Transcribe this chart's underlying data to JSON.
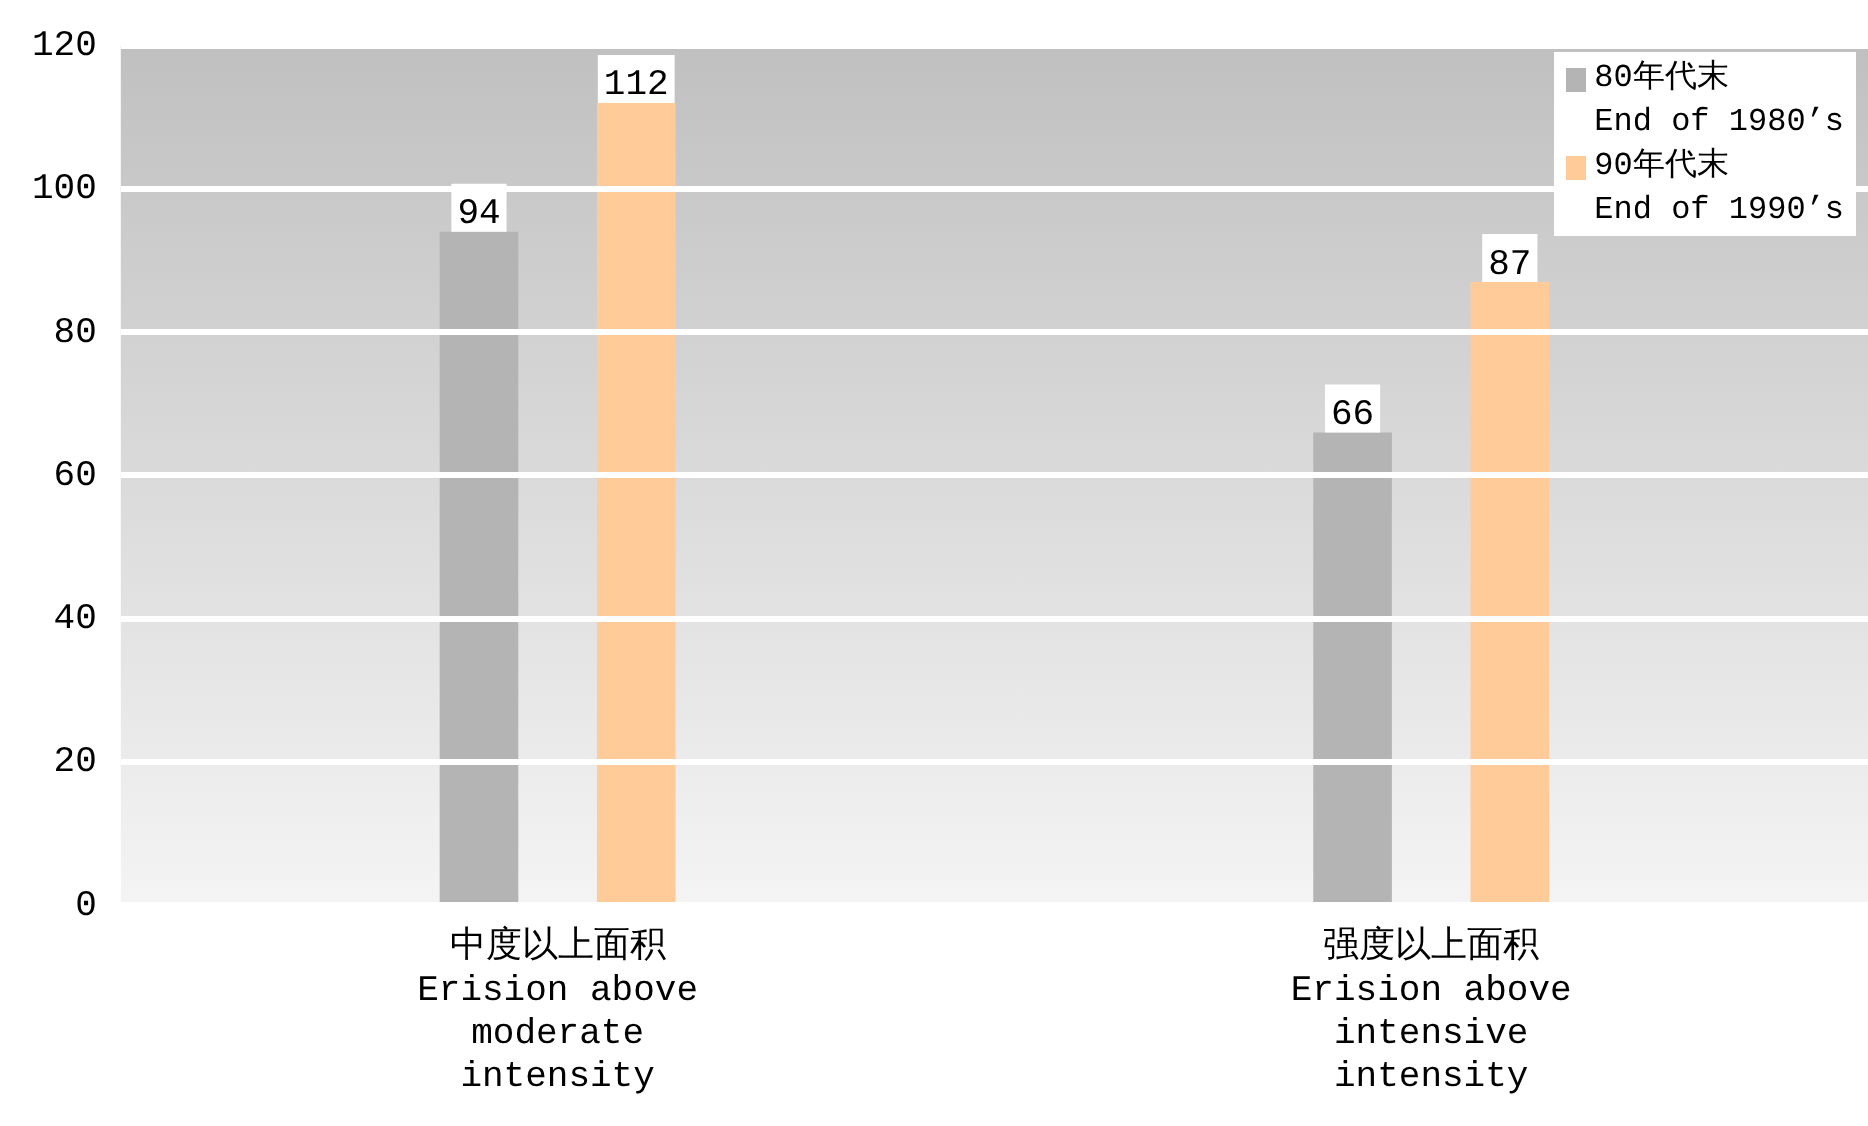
{
  "chart_data": {
    "type": "bar",
    "categories": [
      "中度以上面积\nErision above\nmoderate\nintensity",
      "强度以上面积\nErision above\nintensive\nintensity"
    ],
    "series": [
      {
        "name": "80年代末\nEnd of 1980’s",
        "color": "#b4b4b4",
        "values": [
          94,
          66
        ]
      },
      {
        "name": "90年代末\nEnd of 1990’s",
        "color": "#ffcc99",
        "values": [
          112,
          87
        ]
      }
    ],
    "ylim": [
      0,
      120
    ],
    "yticks": [
      0,
      20,
      40,
      60,
      80,
      100,
      120
    ],
    "grid": "y",
    "legend": "top right",
    "data_labels": true
  }
}
